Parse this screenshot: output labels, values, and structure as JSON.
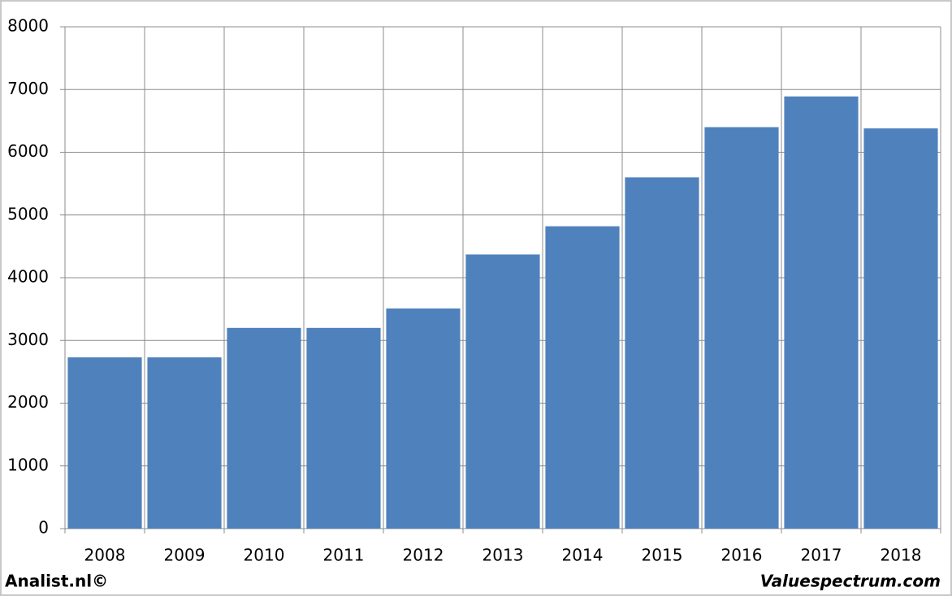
{
  "chart_data": {
    "type": "bar",
    "categories": [
      "2008",
      "2009",
      "2010",
      "2011",
      "2012",
      "2013",
      "2014",
      "2015",
      "2016",
      "2017",
      "2018"
    ],
    "values": [
      2730,
      2730,
      3200,
      3200,
      3510,
      4370,
      4820,
      5600,
      6400,
      6890,
      6380
    ],
    "color": "#4f81bd",
    "ylim": [
      0,
      8000
    ],
    "yticks": [
      0,
      1000,
      2000,
      3000,
      4000,
      5000,
      6000,
      7000,
      8000
    ],
    "grid": true
  },
  "footer": {
    "left": "Analist.nl©",
    "right": "Valuespectrum.com"
  }
}
